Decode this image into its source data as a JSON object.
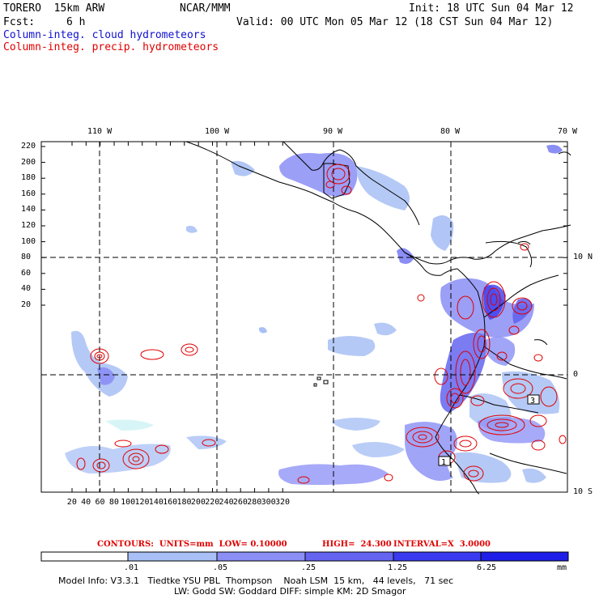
{
  "header": {
    "model": "TORERO  15km ARW",
    "org": "NCAR/MMM",
    "init": "Init: 18 UTC Sun 04 Mar 12",
    "fcst_label": "Fcst:",
    "fcst_value": "6 h",
    "valid": "Valid: 00 UTC Mon 05 Mar 12 (18 CST Sun 04 Mar 12)",
    "field_cloud": "Column-integ. cloud hydrometeors",
    "field_precip": "Column-integ. precip. hydrometeors"
  },
  "map": {
    "top_lon_labels": [
      "110 W",
      "100 W",
      "90 W",
      "80 W",
      "70 W"
    ],
    "right_lat_labels": [
      "10 N",
      "0",
      "10 S"
    ],
    "y_ticks": [
      "220",
      "200",
      "180",
      "160",
      "140",
      "120",
      "100",
      "80",
      "60",
      "40",
      "20"
    ],
    "x_ticks": [
      "20",
      "40",
      "60",
      "80",
      "100",
      "120",
      "140",
      "160",
      "180",
      "200",
      "220",
      "240",
      "260",
      "280",
      "300",
      "320"
    ],
    "region_labels": [
      "1",
      "3"
    ]
  },
  "contour_info": {
    "units": "CONTOURS:  UNITS=mm  LOW= 0.10000",
    "high": "HIGH=  24.300",
    "interval": "INTERVAL=X  3.0000"
  },
  "colorbar": {
    "labels": [
      ".01",
      ".05",
      ".25",
      "1.25",
      "6.25"
    ],
    "unit": "mm",
    "colors": [
      "#ffffff",
      "#d7f5f7",
      "#a8c0f5",
      "#8a8ef5",
      "#6464f0",
      "#3a3af0",
      "#1e1ee8"
    ]
  },
  "footer": {
    "line1": "Model Info: V3.3.1   Tiedtke YSU PBL  Thompson    Noah LSM  15 km,   44 levels,   71 sec",
    "line2": "LW: Godd SW: Goddard DIFF: simple KM: 2D Smagor"
  }
}
